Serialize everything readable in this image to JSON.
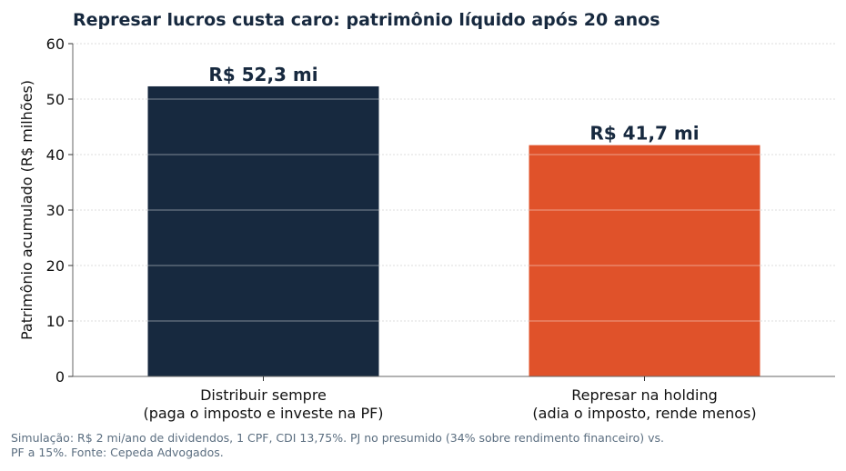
{
  "chart_data": {
    "type": "bar",
    "title": "Represar lucros custa caro: patrimônio líquido após 20 anos",
    "ylabel": "Patrimônio acumulado (R$ milhões)",
    "xlabel": "",
    "ylim": [
      0,
      60
    ],
    "yticks": [
      0,
      10,
      20,
      30,
      40,
      50,
      60
    ],
    "grid": "horizontal",
    "categories": [
      [
        "Distribuir sempre",
        "(paga o imposto e investe na PF)"
      ],
      [
        "Represar na holding",
        "(adia o imposto, rende menos)"
      ]
    ],
    "values": [
      52.3,
      41.7
    ],
    "data_labels": [
      "R$ 52,3 mi",
      "R$ 41,7 mi"
    ],
    "colors": [
      "#17293f",
      "#e0522a"
    ]
  },
  "footnote": "Simulação: R$ 2 mi/ano de dividendos, 1 CPF, CDI 13,75%. PJ no presumido (34% sobre rendimento financeiro) vs. PF a 15%. Fonte: Cepeda Advogados."
}
